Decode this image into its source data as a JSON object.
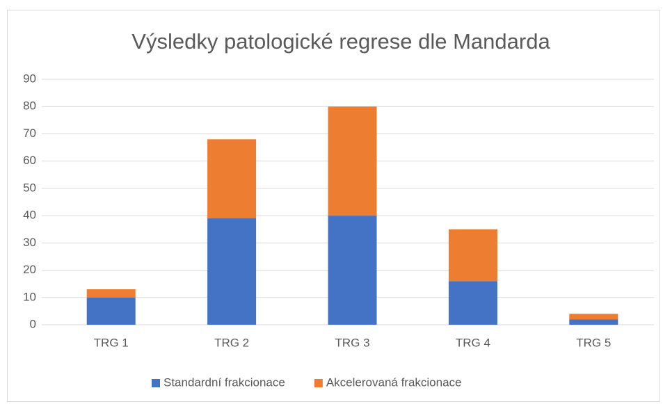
{
  "chart_data": {
    "type": "bar",
    "stacked": true,
    "title": "Výsledky patologické regrese dle Mandarda",
    "categories": [
      "TRG 1",
      "TRG 2",
      "TRG 3",
      "TRG 4",
      "TRG 5"
    ],
    "series": [
      {
        "name": "Standardní frakcionace",
        "color": "#4472c4",
        "values": [
          10,
          39,
          40,
          16,
          2
        ]
      },
      {
        "name": "Akcelerovaná frakcionace",
        "color": "#ed7d31",
        "values": [
          3,
          29,
          40,
          19,
          2
        ]
      }
    ],
    "ylim": [
      0,
      90
    ],
    "yticks": [
      0,
      10,
      20,
      30,
      40,
      50,
      60,
      70,
      80,
      90
    ],
    "grid": true,
    "legend": "bottom"
  }
}
